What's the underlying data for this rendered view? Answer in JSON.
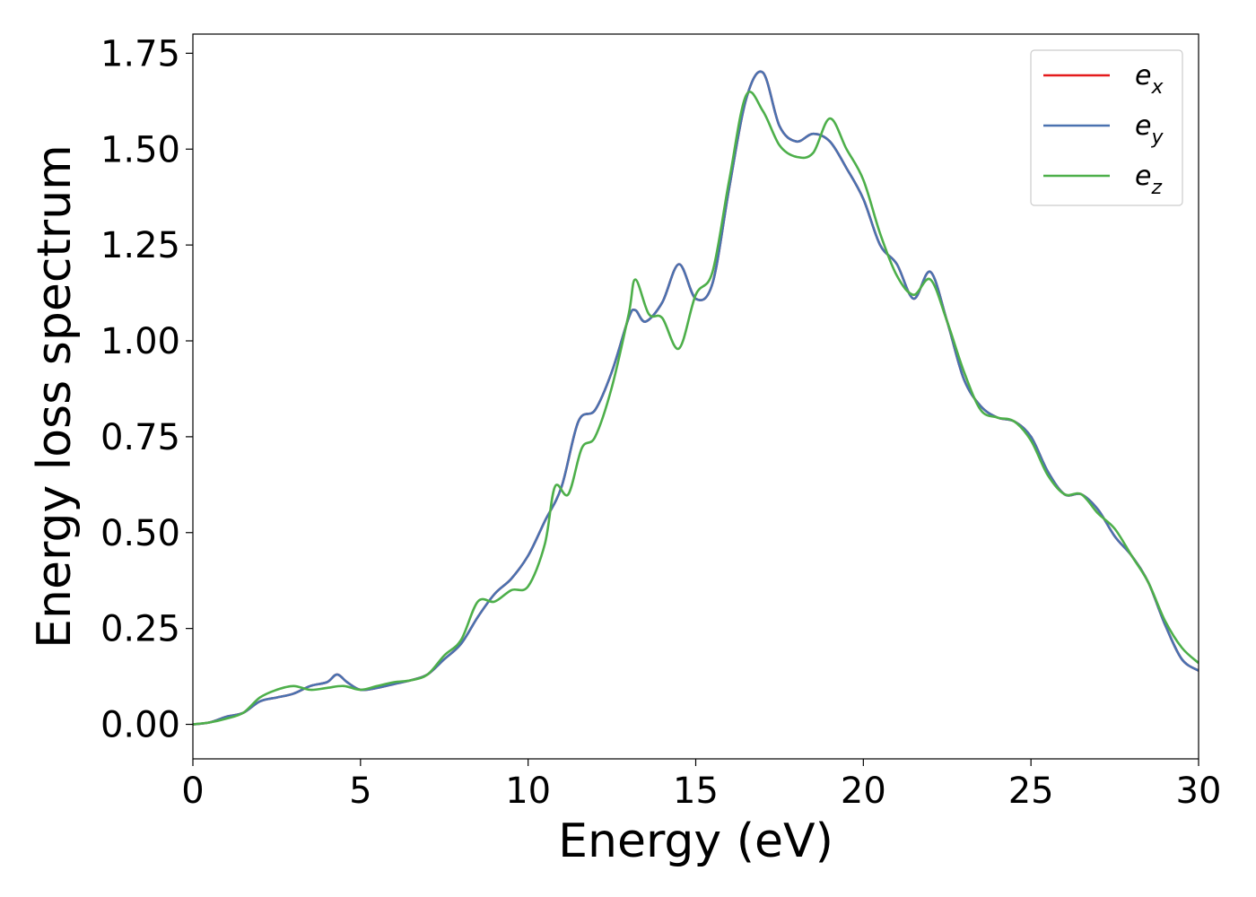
{
  "chart_data": {
    "type": "line",
    "xlabel": "Energy (eV)",
    "ylabel": "Energy loss spectrum",
    "xlim": [
      0,
      30
    ],
    "ylim": [
      -0.09,
      1.8
    ],
    "x_ticks": [
      0,
      5,
      10,
      15,
      20,
      25,
      30
    ],
    "x_tick_labels": [
      "0",
      "5",
      "10",
      "15",
      "20",
      "25",
      "30"
    ],
    "y_ticks": [
      0,
      0.25,
      0.5,
      0.75,
      1.0,
      1.25,
      1.5,
      1.75
    ],
    "y_tick_labels": [
      "0.00",
      "0.25",
      "0.50",
      "0.75",
      "1.00",
      "1.25",
      "1.50",
      "1.75"
    ],
    "grid": false,
    "legend": {
      "placement": "top-right"
    },
    "series": [
      {
        "name": "e",
        "subscript": "x",
        "color": "#e41a1c",
        "x": [
          0,
          0.5,
          1,
          1.5,
          2,
          2.5,
          3,
          3.5,
          4,
          4.3,
          4.6,
          5,
          5.5,
          6,
          6.5,
          7,
          7.5,
          8,
          8.5,
          9,
          9.5,
          10,
          10.5,
          11,
          11.5,
          12,
          12.5,
          13,
          13.2,
          13.5,
          14,
          14.5,
          15,
          15.5,
          16,
          16.5,
          17,
          17.5,
          18,
          18.5,
          19,
          19.5,
          20,
          20.5,
          21,
          21.5,
          22,
          22.5,
          23,
          23.5,
          24,
          24.5,
          25,
          25.5,
          26,
          26.5,
          27,
          27.5,
          28,
          28.5,
          29,
          29.5,
          30
        ],
        "y": [
          0,
          0.005,
          0.02,
          0.03,
          0.06,
          0.07,
          0.08,
          0.1,
          0.11,
          0.13,
          0.11,
          0.09,
          0.095,
          0.105,
          0.115,
          0.13,
          0.17,
          0.21,
          0.28,
          0.34,
          0.38,
          0.44,
          0.53,
          0.62,
          0.79,
          0.82,
          0.92,
          1.06,
          1.08,
          1.05,
          1.1,
          1.2,
          1.11,
          1.15,
          1.4,
          1.63,
          1.7,
          1.56,
          1.52,
          1.54,
          1.52,
          1.45,
          1.37,
          1.25,
          1.2,
          1.11,
          1.18,
          1.05,
          0.9,
          0.83,
          0.8,
          0.79,
          0.75,
          0.66,
          0.6,
          0.6,
          0.56,
          0.49,
          0.44,
          0.37,
          0.26,
          0.17,
          0.14
        ]
      },
      {
        "name": "e",
        "subscript": "y",
        "color": "#4a72b0",
        "x": [
          0,
          0.5,
          1,
          1.5,
          2,
          2.5,
          3,
          3.5,
          4,
          4.3,
          4.6,
          5,
          5.5,
          6,
          6.5,
          7,
          7.5,
          8,
          8.5,
          9,
          9.5,
          10,
          10.5,
          11,
          11.5,
          12,
          12.5,
          13,
          13.2,
          13.5,
          14,
          14.5,
          15,
          15.5,
          16,
          16.5,
          17,
          17.5,
          18,
          18.5,
          19,
          19.5,
          20,
          20.5,
          21,
          21.5,
          22,
          22.5,
          23,
          23.5,
          24,
          24.5,
          25,
          25.5,
          26,
          26.5,
          27,
          27.5,
          28,
          28.5,
          29,
          29.5,
          30
        ],
        "y": [
          0,
          0.005,
          0.02,
          0.03,
          0.06,
          0.07,
          0.08,
          0.1,
          0.11,
          0.13,
          0.11,
          0.09,
          0.095,
          0.105,
          0.115,
          0.13,
          0.17,
          0.21,
          0.28,
          0.34,
          0.38,
          0.44,
          0.53,
          0.62,
          0.79,
          0.82,
          0.92,
          1.06,
          1.08,
          1.05,
          1.1,
          1.2,
          1.11,
          1.15,
          1.4,
          1.63,
          1.7,
          1.56,
          1.52,
          1.54,
          1.52,
          1.45,
          1.37,
          1.25,
          1.2,
          1.11,
          1.18,
          1.05,
          0.9,
          0.83,
          0.8,
          0.79,
          0.75,
          0.66,
          0.6,
          0.6,
          0.56,
          0.49,
          0.44,
          0.37,
          0.26,
          0.17,
          0.14
        ]
      },
      {
        "name": "e",
        "subscript": "z",
        "color": "#4daf4a",
        "x": [
          0,
          0.5,
          1,
          1.5,
          2,
          2.5,
          3,
          3.5,
          4,
          4.5,
          5,
          5.5,
          6,
          6.5,
          7,
          7.5,
          8,
          8.5,
          9,
          9.5,
          10,
          10.5,
          10.8,
          11.2,
          11.6,
          12,
          12.5,
          13,
          13.2,
          13.6,
          14,
          14.5,
          15,
          15.5,
          16,
          16.5,
          17,
          17.5,
          18,
          18.5,
          19,
          19.5,
          20,
          20.5,
          21,
          21.5,
          22,
          22.5,
          23,
          23.5,
          24,
          24.5,
          25,
          25.5,
          26,
          26.5,
          27,
          27.5,
          28,
          28.5,
          29,
          29.5,
          30
        ],
        "y": [
          0,
          0.005,
          0.015,
          0.03,
          0.07,
          0.09,
          0.1,
          0.09,
          0.095,
          0.1,
          0.09,
          0.1,
          0.11,
          0.115,
          0.13,
          0.18,
          0.22,
          0.32,
          0.32,
          0.35,
          0.36,
          0.47,
          0.62,
          0.6,
          0.72,
          0.75,
          0.88,
          1.07,
          1.16,
          1.07,
          1.06,
          0.98,
          1.12,
          1.18,
          1.42,
          1.64,
          1.6,
          1.51,
          1.48,
          1.49,
          1.58,
          1.5,
          1.42,
          1.28,
          1.17,
          1.12,
          1.16,
          1.05,
          0.92,
          0.82,
          0.8,
          0.79,
          0.74,
          0.65,
          0.6,
          0.6,
          0.55,
          0.51,
          0.44,
          0.37,
          0.27,
          0.2,
          0.16
        ]
      }
    ]
  }
}
